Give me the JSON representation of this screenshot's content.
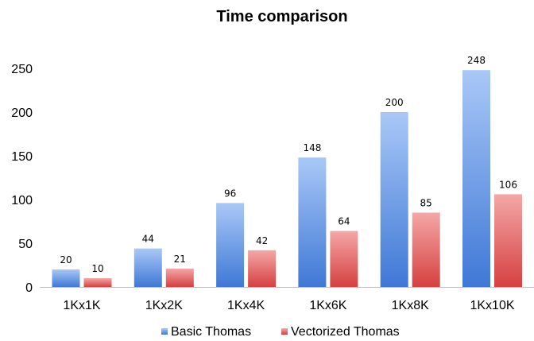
{
  "chart_data": {
    "type": "bar",
    "title": "Time comparison",
    "categories": [
      "1Kx1K",
      "1Kx2K",
      "1Kx4K",
      "1Kx6K",
      "1Kx8K",
      "1Kx10K"
    ],
    "series": [
      {
        "name": "Basic Thomas",
        "values": [
          20,
          44,
          96,
          148,
          200,
          248
        ],
        "color": "#6f9de8"
      },
      {
        "name": "Vectorized Thomas",
        "values": [
          10,
          21,
          42,
          64,
          85,
          106
        ],
        "color": "#e96a6a"
      }
    ],
    "ylim": [
      0,
      250
    ],
    "yticks": [
      0,
      50,
      100,
      150,
      200,
      250
    ],
    "xlabel": "",
    "ylabel": "",
    "grid": false,
    "legend": "bottom"
  }
}
